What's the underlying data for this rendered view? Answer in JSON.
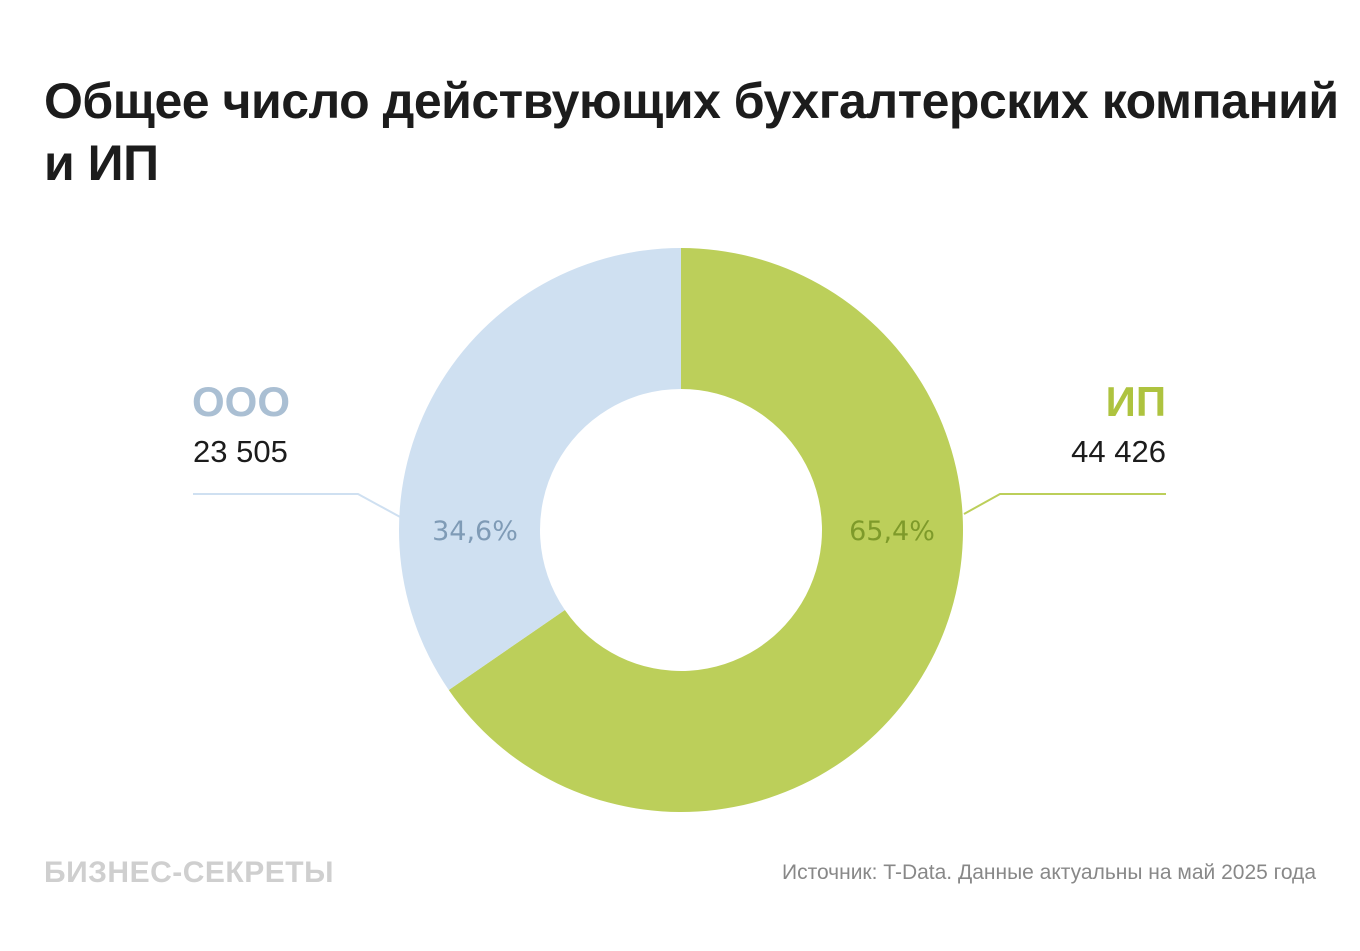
{
  "title": "Общее число действующих бухгалтерских компаний и ИП",
  "chart_data": {
    "type": "pie",
    "donut": true,
    "title": "Общее число действующих бухгалтерских компаний и ИП",
    "slices": [
      {
        "name": "ИП",
        "value": 44426,
        "value_label": "44 426",
        "percent": 65.4,
        "percent_label": "65,4%",
        "color": "#bccf5a",
        "label_color": "#aec33f",
        "percent_color": "#7e9a2a"
      },
      {
        "name": "ООО",
        "value": 23505,
        "value_label": "23 505",
        "percent": 34.6,
        "percent_label": "34,6%",
        "color": "#cfe0f1",
        "label_color": "#aabfd3",
        "percent_color": "#7f9bb6"
      }
    ]
  },
  "footer": {
    "logo": "БИЗНЕС-СЕКРЕТЫ",
    "source": "Источник: T-Data. Данные актуальны на май 2025 года"
  }
}
